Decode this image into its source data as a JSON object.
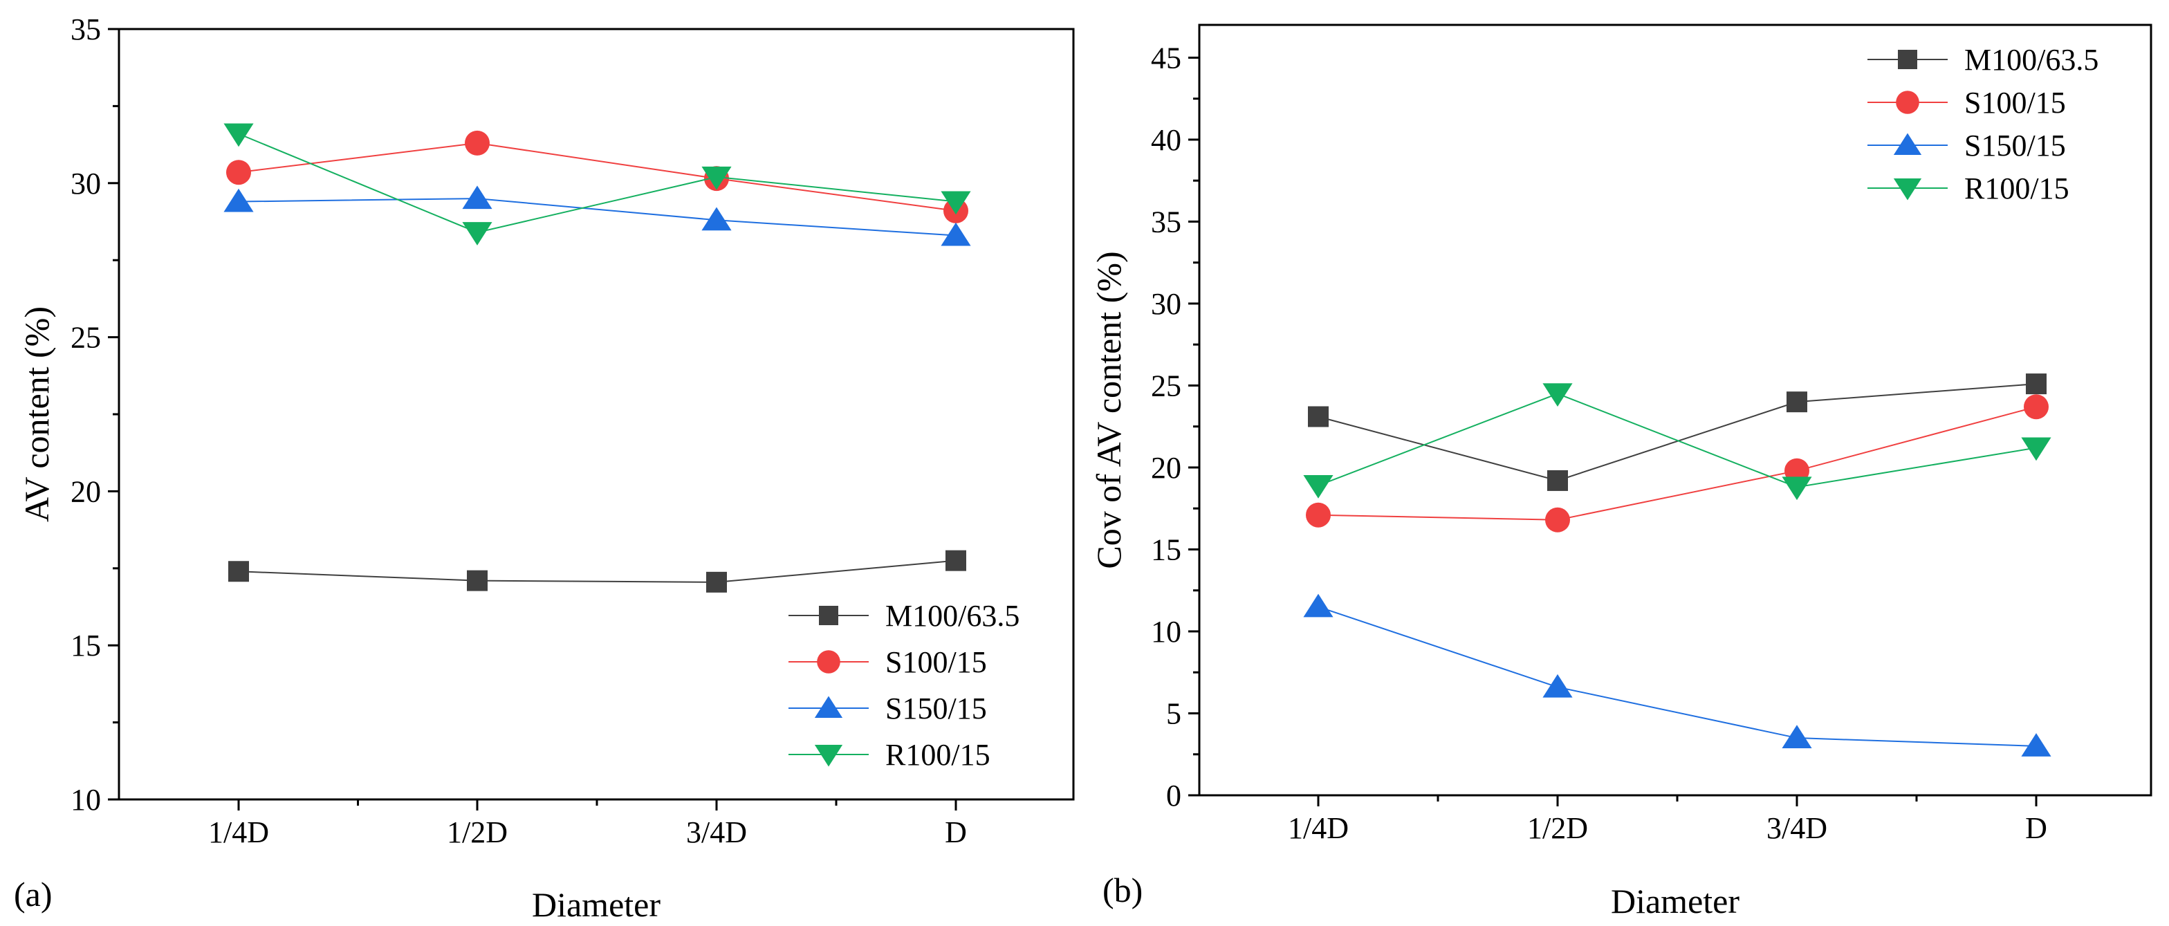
{
  "colors": {
    "M100/63.5": "#404040",
    "S100/15": "#f04040",
    "S150/15": "#1f6fe0",
    "R100/15": "#14b060"
  },
  "chart_data": [
    {
      "panel_label": "(a)",
      "type": "line",
      "xlabel": "Diameter",
      "ylabel": "AV content (%)",
      "categories": [
        "1/4D",
        "1/2D",
        "3/4D",
        "D"
      ],
      "ylim": [
        10,
        35
      ],
      "yticks": [
        10,
        15,
        20,
        25,
        30,
        35
      ],
      "legend_position": "bottom-right",
      "series": [
        {
          "name": "M100/63.5",
          "marker": "square",
          "values": [
            17.4,
            17.1,
            17.05,
            17.75
          ]
        },
        {
          "name": "S100/15",
          "marker": "circle",
          "values": [
            30.35,
            31.3,
            30.15,
            29.1
          ]
        },
        {
          "name": "S150/15",
          "marker": "triangle-up",
          "values": [
            29.4,
            29.5,
            28.8,
            28.3
          ]
        },
        {
          "name": "R100/15",
          "marker": "triangle-down",
          "values": [
            31.6,
            28.4,
            30.2,
            29.4
          ]
        }
      ]
    },
    {
      "panel_label": "(b)",
      "type": "line",
      "xlabel": "Diameter",
      "ylabel": "Cov of AV content (%)",
      "categories": [
        "1/4D",
        "1/2D",
        "3/4D",
        "D"
      ],
      "ylim": [
        0,
        47
      ],
      "yticks": [
        0,
        5,
        10,
        15,
        20,
        25,
        30,
        35,
        40,
        45
      ],
      "legend_position": "top-right",
      "series": [
        {
          "name": "M100/63.5",
          "marker": "square",
          "values": [
            23.1,
            19.2,
            24.0,
            25.1
          ]
        },
        {
          "name": "S100/15",
          "marker": "circle",
          "values": [
            17.1,
            16.8,
            19.8,
            23.7
          ]
        },
        {
          "name": "S150/15",
          "marker": "triangle-up",
          "values": [
            11.5,
            6.6,
            3.5,
            3.0
          ]
        },
        {
          "name": "R100/15",
          "marker": "triangle-down",
          "values": [
            18.9,
            24.5,
            18.8,
            21.2
          ]
        }
      ]
    }
  ]
}
